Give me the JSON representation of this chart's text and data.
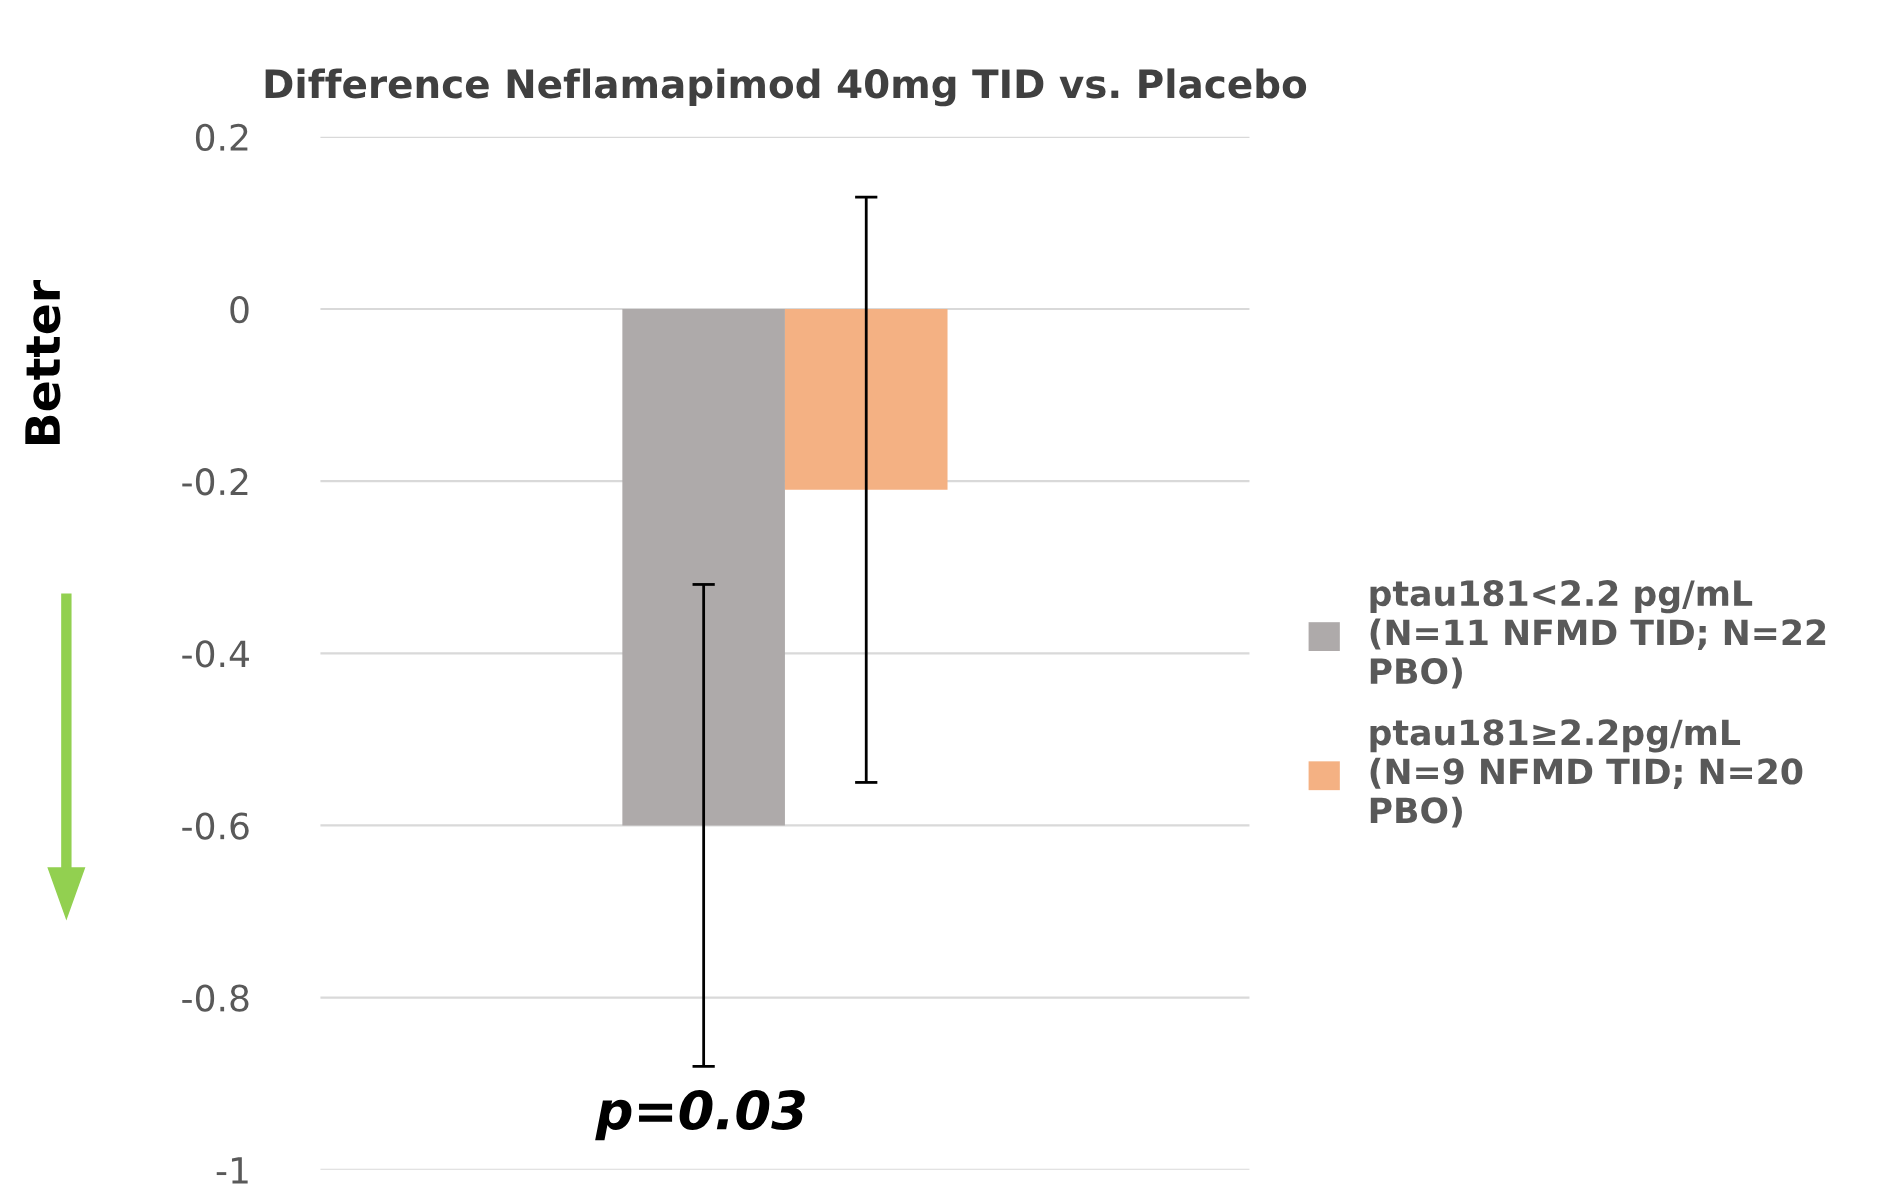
{
  "chart_data": {
    "type": "bar",
    "title": "Difference Neflamapimod 40mg TID vs. Placebo",
    "ylabel": "Better",
    "categories": [
      null
    ],
    "series": [
      {
        "name": "ptau181<2.2 pg/mL\n(N=11 NFMD TID; N=22\nPBO)",
        "color": "#aeaaaa",
        "values": [
          -0.6
        ],
        "errors": [
          0.28
        ]
      },
      {
        "name": "ptau181≥2.2pg/mL\n(N=9 NFMD TID; N=20\nPBO)",
        "color": "#f4b183",
        "values": [
          -0.21
        ],
        "errors": [
          0.34
        ]
      }
    ],
    "ylim": [
      -1,
      0.2
    ],
    "yticks": [
      -1,
      -0.8,
      -0.6,
      -0.4,
      -0.2,
      0,
      0.2
    ],
    "grid": "y",
    "legend": "right",
    "annotations": [
      "p=0.03"
    ]
  }
}
